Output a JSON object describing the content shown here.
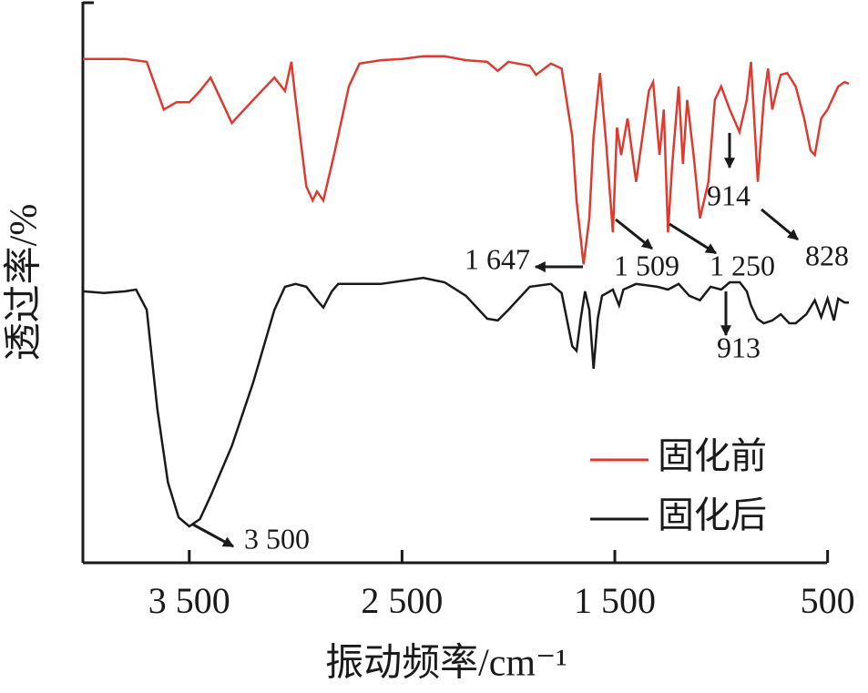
{
  "chart_data": {
    "type": "line",
    "x_label": "振动频率/cm⁻¹",
    "y_label": "透过率/%",
    "xlim": [
      4000,
      400
    ],
    "ylim": [
      0,
      100
    ],
    "xticks": [
      {
        "value": 3500,
        "label": "3 500"
      },
      {
        "value": 2500,
        "label": "2 500"
      },
      {
        "value": 1500,
        "label": "1 500"
      },
      500
    ],
    "legend": "lower right",
    "series": [
      {
        "name": "固化前",
        "color": "#e03a2e",
        "x": [
          4000,
          3800,
          3700,
          3620,
          3560,
          3500,
          3450,
          3400,
          3350,
          3300,
          3200,
          3100,
          3050,
          3020,
          3000,
          2950,
          2920,
          2900,
          2870,
          2820,
          2750,
          2700,
          2600,
          2500,
          2400,
          2300,
          2200,
          2100,
          2050,
          2000,
          1900,
          1870,
          1800,
          1750,
          1700,
          1680,
          1647,
          1620,
          1600,
          1570,
          1540,
          1509,
          1490,
          1470,
          1440,
          1400,
          1370,
          1340,
          1320,
          1290,
          1270,
          1250,
          1230,
          1200,
          1180,
          1160,
          1130,
          1100,
          1060,
          1030,
          1000,
          960,
          914,
          880,
          860,
          828,
          800,
          780,
          760,
          740,
          720,
          690,
          650,
          610,
          580,
          560,
          530,
          500,
          450,
          420,
          400
        ],
        "values": [
          89.8,
          89.8,
          89.3,
          80.8,
          82.1,
          82.1,
          84.1,
          86.5,
          82.5,
          78.4,
          82.5,
          86.5,
          84.1,
          89.3,
          82.5,
          67.1,
          64.6,
          66.2,
          64.6,
          72.7,
          84.9,
          89.0,
          89.6,
          89.8,
          90.3,
          90.3,
          89.6,
          89.3,
          87.7,
          89.3,
          88.6,
          87.0,
          89.0,
          88.1,
          76.0,
          64.6,
          53.2,
          61.4,
          76.0,
          87.3,
          74.4,
          58.9,
          77.6,
          72.7,
          79.2,
          67.9,
          76.0,
          84.1,
          85.7,
          72.7,
          80.8,
          58.9,
          71.1,
          84.9,
          71.1,
          82.5,
          72.7,
          61.4,
          67.9,
          82.5,
          84.9,
          80.8,
          76.8,
          82.5,
          89.3,
          67.9,
          82.5,
          88.1,
          80.8,
          84.1,
          87.0,
          87.3,
          84.9,
          79.2,
          73.5,
          72.7,
          79.2,
          80.8,
          84.9,
          85.7,
          85.4
        ],
        "annotations": [
          {
            "value": 1647,
            "label": "1 647"
          },
          {
            "value": 1509,
            "label": "1 509"
          },
          {
            "value": 1250,
            "label": "1 250"
          },
          914,
          828
        ]
      },
      {
        "name": "固化后",
        "color": "#1a1a1a",
        "x": [
          4000,
          3900,
          3800,
          3750,
          3700,
          3650,
          3600,
          3550,
          3500,
          3450,
          3400,
          3300,
          3200,
          3100,
          3050,
          3000,
          2950,
          2900,
          2870,
          2830,
          2800,
          2600,
          2400,
          2300,
          2200,
          2100,
          2050,
          2000,
          1900,
          1800,
          1750,
          1700,
          1680,
          1660,
          1640,
          1620,
          1600,
          1580,
          1560,
          1509,
          1480,
          1460,
          1400,
          1300,
          1250,
          1200,
          1150,
          1100,
          1050,
          1000,
          960,
          913,
          880,
          860,
          830,
          800,
          760,
          720,
          680,
          650,
          600,
          560,
          530,
          500,
          470,
          450,
          420,
          400
        ],
        "values": [
          48.4,
          48.1,
          48.4,
          48.7,
          45.1,
          27.3,
          14.3,
          8.1,
          6.5,
          7.8,
          11.9,
          20.8,
          32.1,
          45.1,
          49.2,
          49.7,
          49.2,
          46.8,
          45.5,
          48.4,
          49.7,
          49.7,
          50.8,
          50.0,
          47.6,
          43.5,
          43.2,
          45.1,
          49.2,
          49.7,
          48.1,
          38.6,
          37.8,
          43.5,
          48.4,
          45.1,
          34.6,
          43.5,
          47.6,
          48.7,
          45.9,
          48.7,
          49.7,
          49.2,
          48.7,
          49.7,
          47.6,
          46.8,
          49.2,
          48.7,
          50.0,
          50.0,
          48.4,
          45.9,
          43.5,
          42.7,
          43.2,
          44.3,
          42.7,
          42.7,
          44.3,
          46.8,
          43.8,
          47.1,
          43.2,
          47.1,
          46.4,
          46.4
        ],
        "annotations": [
          913,
          {
            "value": 3500,
            "label": "3 500"
          }
        ]
      }
    ]
  }
}
